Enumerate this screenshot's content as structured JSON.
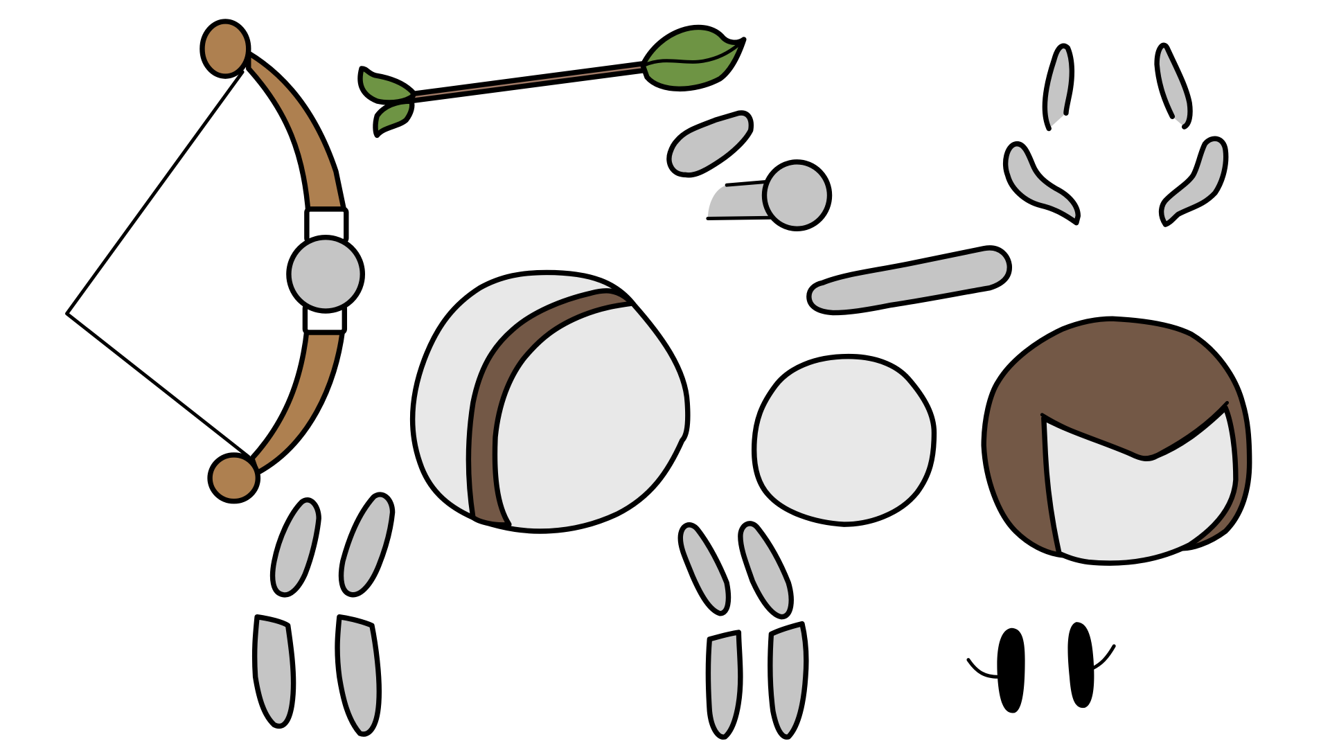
{
  "sheet": {
    "background": "#ffffff"
  },
  "palette": {
    "outline": "#000000",
    "bow_wood": "#ae8050",
    "hair_brown": "#735846",
    "leaf_green": "#6e9444",
    "arrow_shaft": "#a07a66",
    "limb_gray": "#c5c5c5",
    "face_white": "#e8e8e8",
    "eye_black": "#000000"
  },
  "sprites": [
    {
      "name": "bow",
      "icon": "bow-icon"
    },
    {
      "name": "arrow",
      "icon": "arrow-icon"
    },
    {
      "name": "hand-upper",
      "icon": "hand-icon"
    },
    {
      "name": "forearm-fist",
      "icon": "fist-icon"
    },
    {
      "name": "ears-upper",
      "icon": "ear-icon"
    },
    {
      "name": "ears-lower",
      "icon": "ear-icon"
    },
    {
      "name": "long-arm",
      "icon": "arm-icon"
    },
    {
      "name": "head-headband",
      "icon": "head-icon"
    },
    {
      "name": "head-plain",
      "icon": "head-icon"
    },
    {
      "name": "head-hair",
      "icon": "head-icon"
    },
    {
      "name": "arms-left-pair",
      "icon": "arm-icon"
    },
    {
      "name": "legs-left-pair",
      "icon": "leg-icon"
    },
    {
      "name": "arms-right-pair",
      "icon": "arm-icon"
    },
    {
      "name": "legs-right-pair",
      "icon": "leg-icon"
    },
    {
      "name": "eyes",
      "icon": "eye-icon"
    }
  ]
}
